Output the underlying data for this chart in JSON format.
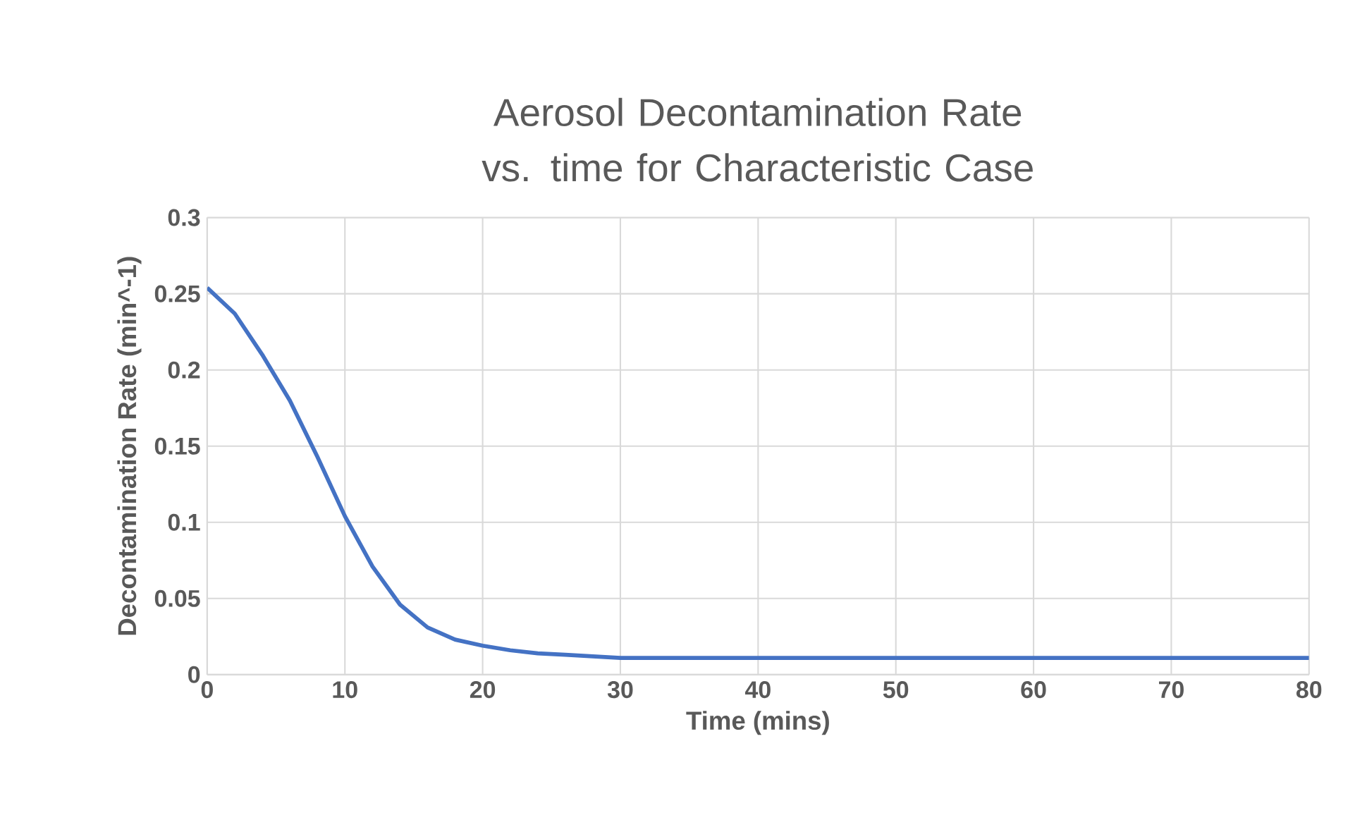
{
  "chart_data": {
    "type": "line",
    "title": "Aerosol Decontamination Rate vs. time for Characteristic Case",
    "xlabel": "Time (mins)",
    "ylabel": "Decontamination Rate (min^-1)",
    "x": [
      0,
      2,
      4,
      6,
      8,
      10,
      12,
      14,
      16,
      18,
      20,
      22,
      24,
      26,
      28,
      30,
      35,
      40,
      50,
      60,
      70,
      80
    ],
    "series": [
      {
        "color": "#4472c4",
        "values": [
          0.254,
          0.237,
          0.21,
          0.18,
          0.143,
          0.104,
          0.071,
          0.046,
          0.031,
          0.023,
          0.019,
          0.016,
          0.014,
          0.013,
          0.012,
          0.011,
          0.011,
          0.011,
          0.011,
          0.011,
          0.011,
          0.011
        ]
      }
    ],
    "xlim": [
      0,
      80
    ],
    "xticks": [
      0,
      10,
      20,
      30,
      40,
      50,
      60,
      70,
      80
    ],
    "ylim": [
      0,
      0.3
    ],
    "yticks": [
      0,
      0.05,
      0.1,
      0.15,
      0.2,
      0.25,
      0.3
    ],
    "grid": true,
    "marker": "none",
    "line_style": "solid"
  }
}
